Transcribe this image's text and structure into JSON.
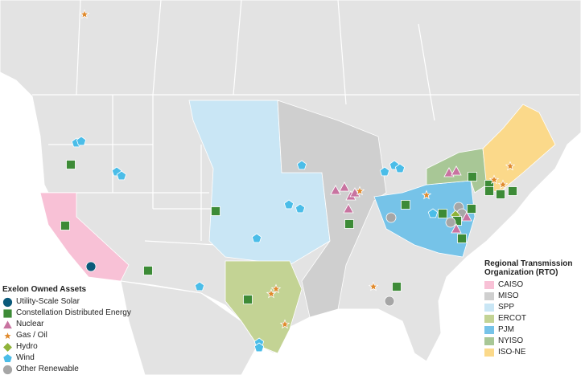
{
  "legend_assets": {
    "title": "Exelon Owned Assets",
    "items": [
      "Utility-Scale Solar",
      "Constellation Distributed Energy",
      "Nuclear",
      "Gas / Oil",
      "Hydro",
      "Wind",
      "Other Renewable"
    ]
  },
  "legend_rto": {
    "title": "Regional Transmission Organization (RTO)",
    "items": [
      "CAISO",
      "MISO",
      "SPP",
      "ERCOT",
      "PJM",
      "NYISO",
      "ISO-NE"
    ]
  }
}
